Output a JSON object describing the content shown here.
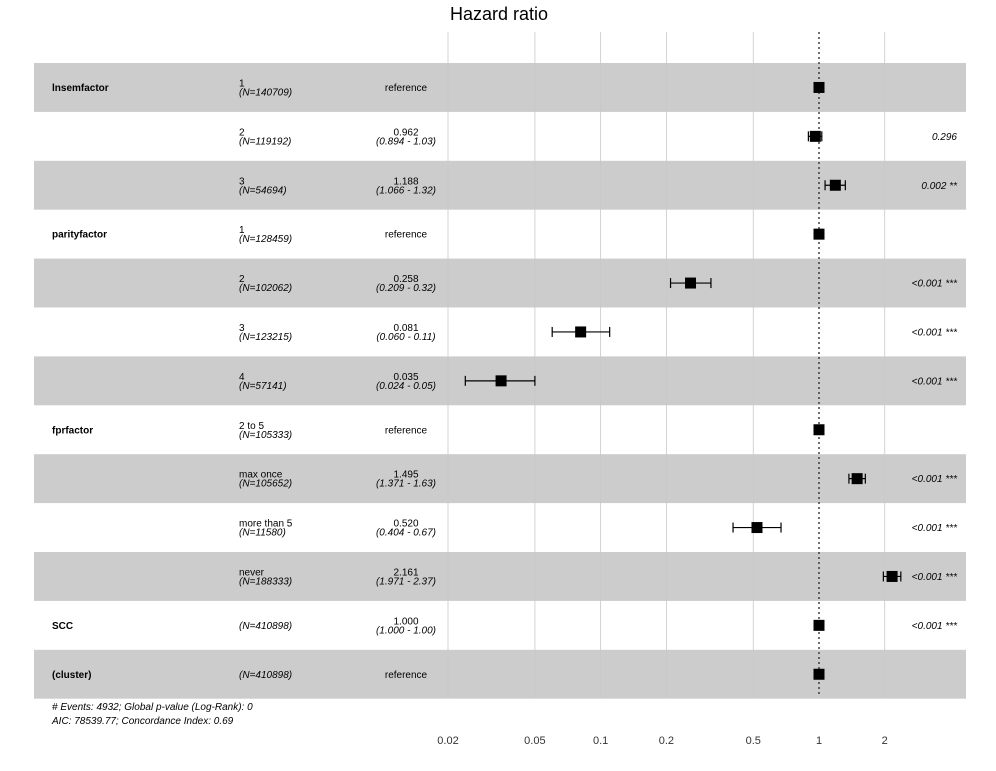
{
  "chart_data": {
    "type": "forest",
    "title": "Hazard ratio",
    "x_scale": "log",
    "xlim": [
      0.02,
      4
    ],
    "x_ticks": [
      0.02,
      0.05,
      0.1,
      0.2,
      0.5,
      1,
      2
    ],
    "x_tick_labels": [
      "0.02",
      "0.05",
      "0.1",
      "0.2",
      "0.5",
      "1",
      "2"
    ],
    "reference_line": 1,
    "grid": true,
    "rows": [
      {
        "var": "lnsemfactor",
        "level": "1",
        "n": "(N=140709)",
        "est": "reference",
        "ci": "",
        "hr": 1,
        "lo": 1,
        "hi": 1,
        "p": "",
        "shaded": true
      },
      {
        "var": "",
        "level": "2",
        "n": "(N=119192)",
        "est": "0.962",
        "ci": "(0.894 - 1.03)",
        "hr": 0.962,
        "lo": 0.894,
        "hi": 1.03,
        "p": "0.296",
        "shaded": false
      },
      {
        "var": "",
        "level": "3",
        "n": "(N=54694)",
        "est": "1.188",
        "ci": "(1.066 - 1.32)",
        "hr": 1.188,
        "lo": 1.066,
        "hi": 1.32,
        "p": "0.002 **",
        "shaded": true
      },
      {
        "var": "parityfactor",
        "level": "1",
        "n": "(N=128459)",
        "est": "reference",
        "ci": "",
        "hr": 1,
        "lo": 1,
        "hi": 1,
        "p": "",
        "shaded": false
      },
      {
        "var": "",
        "level": "2",
        "n": "(N=102062)",
        "est": "0.258",
        "ci": "(0.209 - 0.32)",
        "hr": 0.258,
        "lo": 0.209,
        "hi": 0.32,
        "p": "<0.001 ***",
        "shaded": true
      },
      {
        "var": "",
        "level": "3",
        "n": "(N=123215)",
        "est": "0.081",
        "ci": "(0.060 - 0.11)",
        "hr": 0.081,
        "lo": 0.06,
        "hi": 0.11,
        "p": "<0.001 ***",
        "shaded": false
      },
      {
        "var": "",
        "level": "4",
        "n": "(N=57141)",
        "est": "0.035",
        "ci": "(0.024 - 0.05)",
        "hr": 0.035,
        "lo": 0.024,
        "hi": 0.05,
        "p": "<0.001 ***",
        "shaded": true
      },
      {
        "var": "fprfactor",
        "level": "2 to 5",
        "n": "(N=105333)",
        "est": "reference",
        "ci": "",
        "hr": 1,
        "lo": 1,
        "hi": 1,
        "p": "",
        "shaded": false
      },
      {
        "var": "",
        "level": "max once",
        "n": "(N=105652)",
        "est": "1.495",
        "ci": "(1.371 - 1.63)",
        "hr": 1.495,
        "lo": 1.371,
        "hi": 1.63,
        "p": "<0.001 ***",
        "shaded": true
      },
      {
        "var": "",
        "level": "more than 5",
        "n": "(N=11580)",
        "est": "0.520",
        "ci": "(0.404 - 0.67)",
        "hr": 0.52,
        "lo": 0.404,
        "hi": 0.67,
        "p": "<0.001 ***",
        "shaded": false
      },
      {
        "var": "",
        "level": "never",
        "n": "(N=188333)",
        "est": "2.161",
        "ci": "(1.971 - 2.37)",
        "hr": 2.161,
        "lo": 1.971,
        "hi": 2.37,
        "p": "<0.001 ***",
        "shaded": true
      },
      {
        "var": "SCC",
        "level": "",
        "n": "(N=410898)",
        "est": "1.000",
        "ci": "(1.000 - 1.00)",
        "hr": 1,
        "lo": 1,
        "hi": 1,
        "p": "<0.001 ***",
        "shaded": false
      },
      {
        "var": "(cluster)",
        "level": "",
        "n": "(N=410898)",
        "est": "reference",
        "ci": "",
        "hr": 1,
        "lo": 1,
        "hi": 1,
        "p": "",
        "shaded": true
      }
    ],
    "footer": [
      "# Events: 4932; Global p-value (Log-Rank): 0",
      "AIC: 78539.77; Concordance Index: 0.69"
    ],
    "colors": {
      "band": "#cccccc",
      "grid": "#c8c8c8",
      "marker": "#000000",
      "ref_line": "#333333"
    }
  }
}
